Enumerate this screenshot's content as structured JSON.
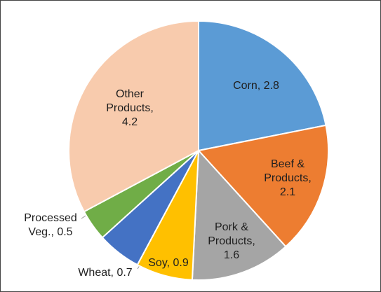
{
  "chart_data": {
    "type": "pie",
    "values": [
      2.8,
      2.1,
      1.6,
      0.9,
      0.7,
      0.5,
      4.2
    ],
    "value_labels": [
      "Corn, 2.8",
      "Beef &\nProducts,\n2.1",
      "Pork &\nProducts,\n1.6",
      "Soy, 0.9",
      "Wheat, 0.7",
      "Processed\nVeg., 0.5",
      "Other\nProducts,\n4.2"
    ],
    "colors": [
      "#5b9bd5",
      "#ed7d31",
      "#a5a5a5",
      "#ffc000",
      "#4472c4",
      "#70ad47",
      "#f8cbad"
    ]
  }
}
